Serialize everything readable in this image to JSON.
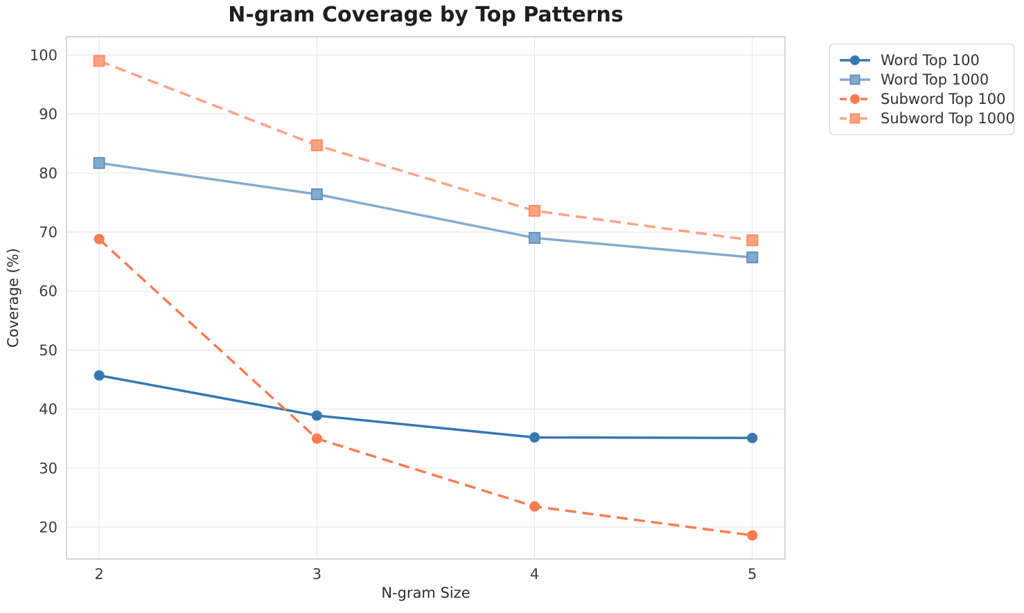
{
  "figure": {
    "background_color": "#ffffff",
    "grid_color": "#e7e7e7",
    "spine_color": "#cccccc",
    "tick_label_color": "#3c3c3c",
    "title_color": "#1f1f1f",
    "axis_label_color": "#2e2e2e",
    "legend_border_color": "#d2d2d2"
  },
  "chart_data": {
    "type": "line",
    "title": "N-gram Coverage by Top Patterns",
    "xlabel": "N-gram Size",
    "ylabel": "Coverage (%)",
    "x": [
      2,
      3,
      4,
      5
    ],
    "xticks": [
      2,
      3,
      4,
      5
    ],
    "yticks": [
      20,
      30,
      40,
      50,
      60,
      70,
      80,
      90,
      100
    ],
    "xlim": [
      1.85,
      5.15
    ],
    "ylim": [
      14.6,
      103.1
    ],
    "grid": true,
    "legend_position": "outside-upper-right",
    "series": [
      {
        "name": "Word Top 100",
        "values": [
          45.7,
          38.9,
          35.2,
          35.1
        ],
        "color": "#3778B3",
        "edge_color": "#3778B3",
        "line_style": "solid",
        "marker": "circle"
      },
      {
        "name": "Word Top 1000",
        "values": [
          81.7,
          76.4,
          69.0,
          65.7
        ],
        "color": "#84ABCF",
        "edge_color": "#5E8FBC",
        "line_style": "solid",
        "marker": "square"
      },
      {
        "name": "Subword Top 100",
        "values": [
          68.8,
          35.0,
          23.5,
          18.6
        ],
        "color": "#FB7B50",
        "edge_color": "#FB7B50",
        "line_style": "dashed",
        "marker": "circle"
      },
      {
        "name": "Subword Top 1000",
        "values": [
          99.0,
          84.7,
          73.6,
          68.6
        ],
        "color": "#FCA284",
        "edge_color": "#FB8A62",
        "line_style": "dashed",
        "marker": "square"
      }
    ]
  }
}
